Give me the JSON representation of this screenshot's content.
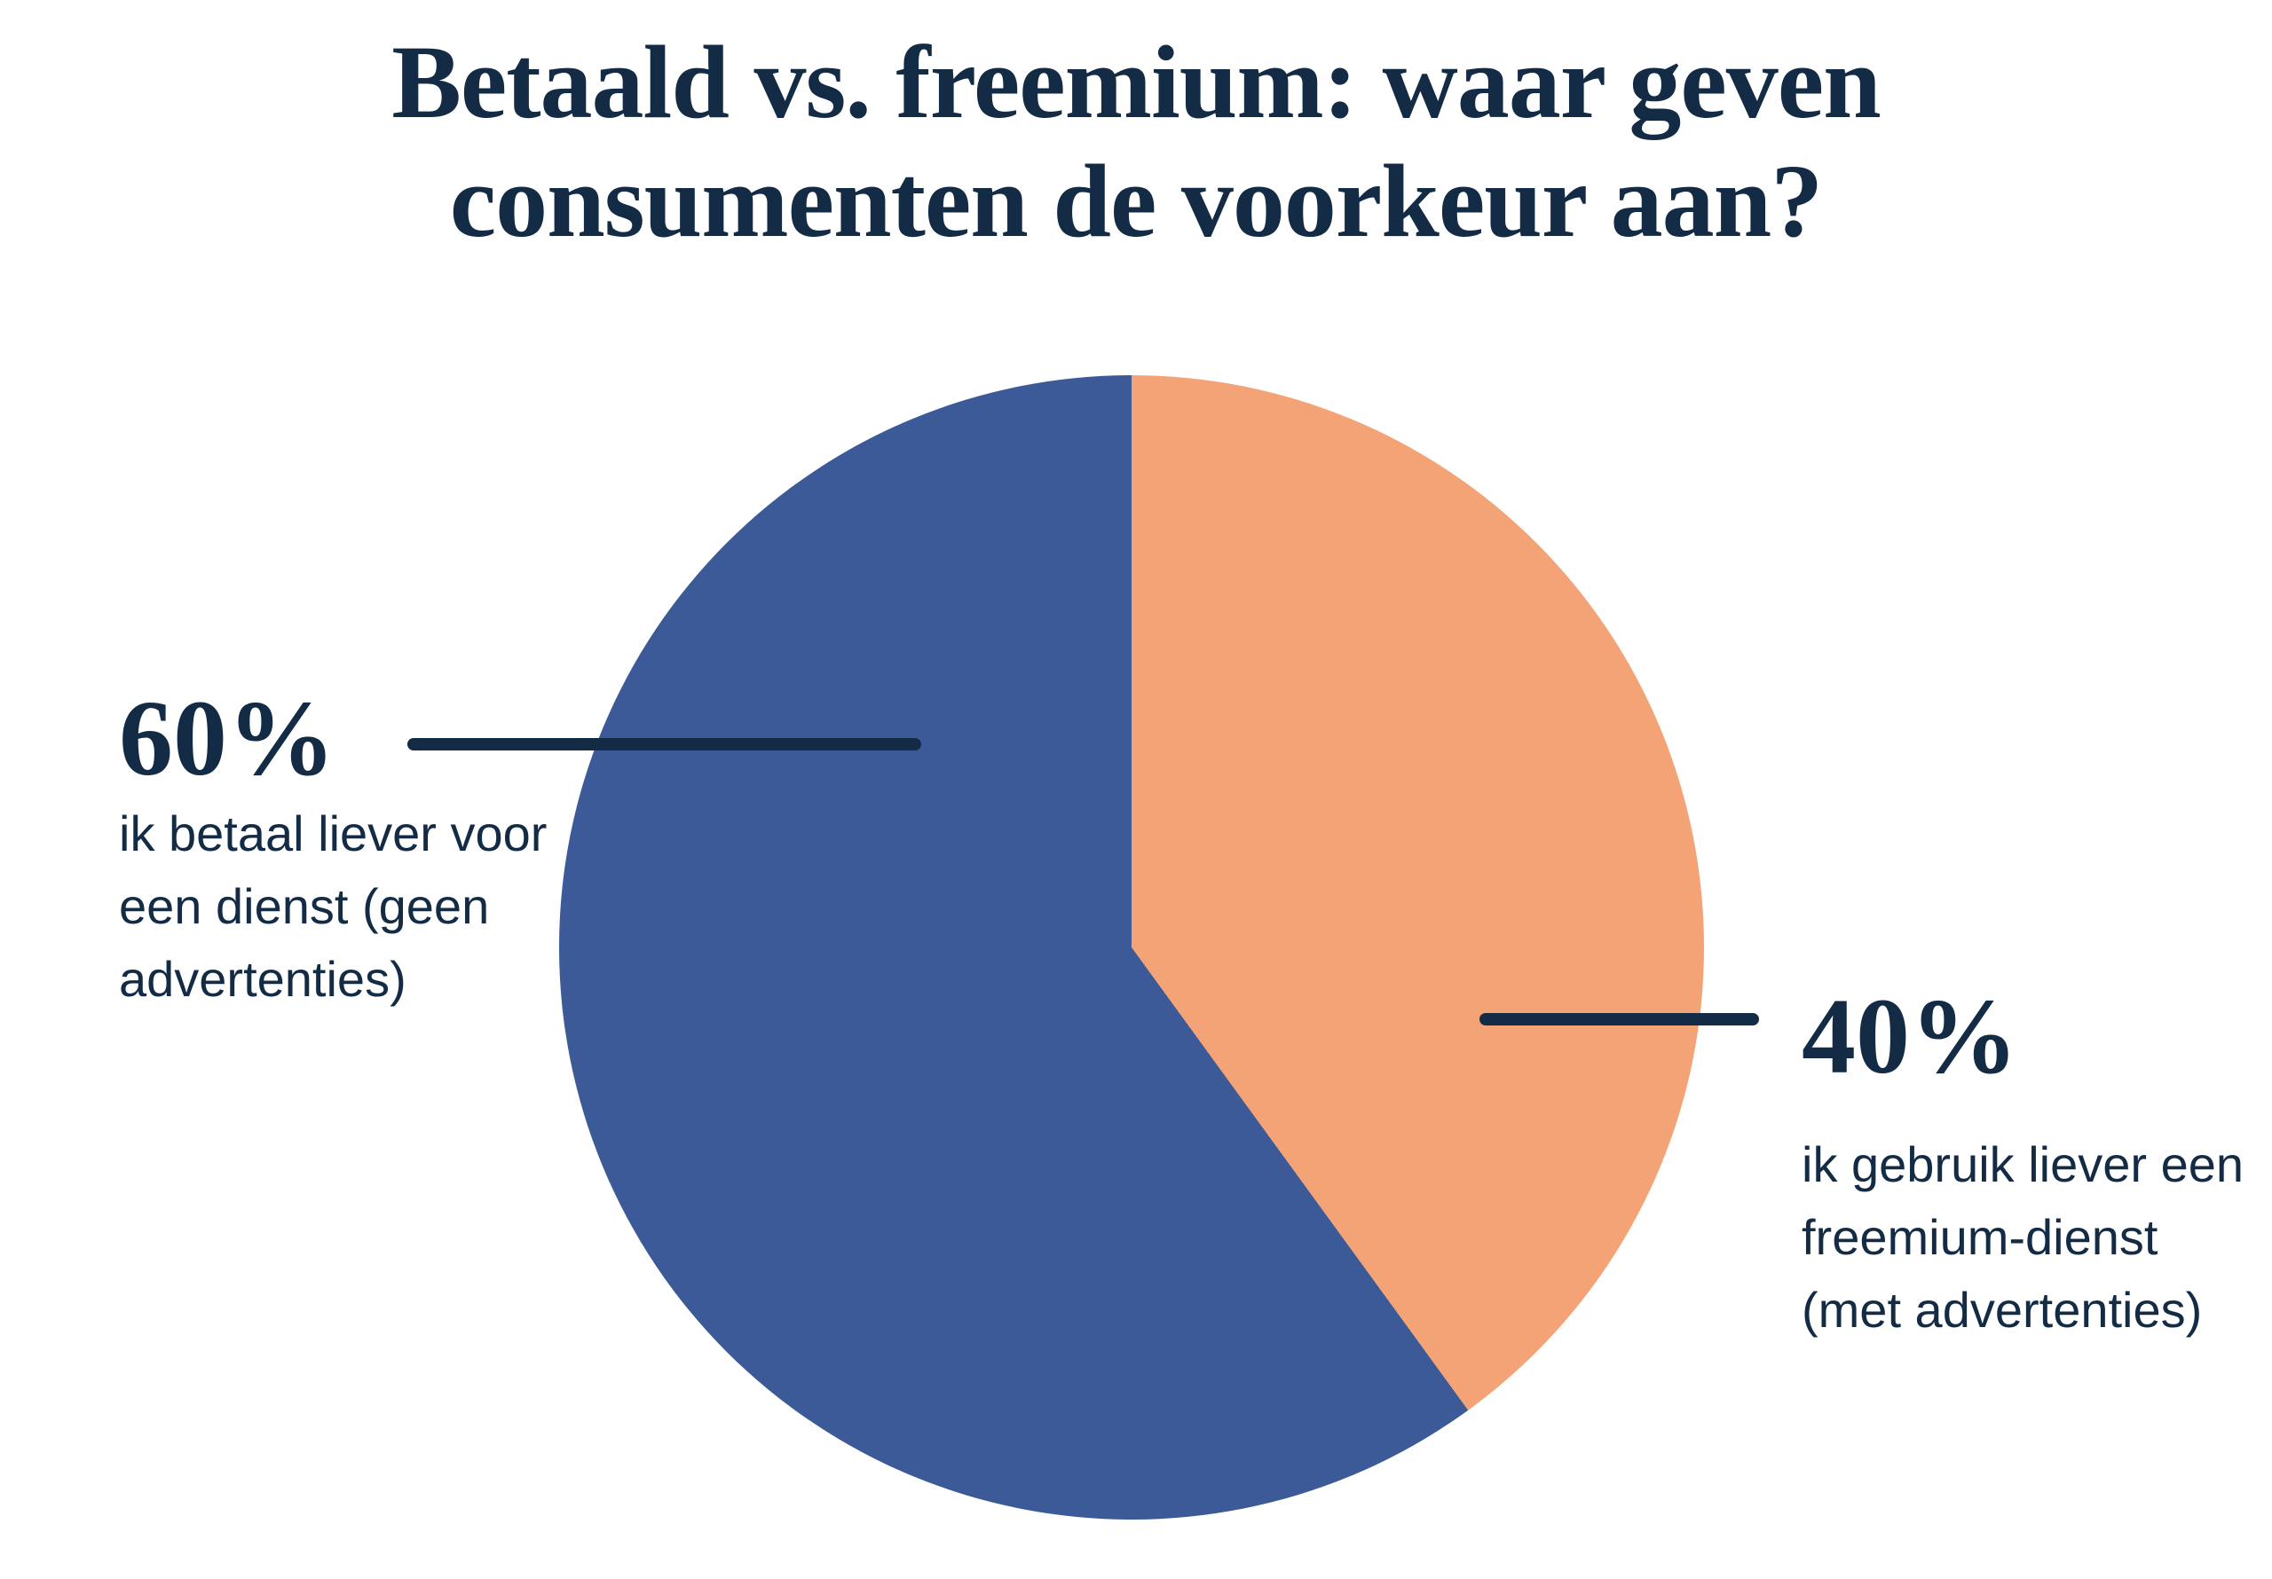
{
  "title": {
    "full": "Betaald vs. freemium: waar geven consumenten de voorkeur aan?",
    "lines": [
      "Betaald vs. freemium: waar geven",
      "consumenten de voorkeur aan?"
    ]
  },
  "chart_data": {
    "type": "pie",
    "title": "Betaald vs. freemium: waar geven consumenten de voorkeur aan?",
    "series": [
      {
        "name": "ik betaal liever voor een dienst (geen advertenties)",
        "value": 60,
        "unit": "%",
        "color": "#3B5A97"
      },
      {
        "name": "ik gebruik liever een freemium-dienst (met advertenties)",
        "value": 40,
        "unit": "%",
        "color": "#F4A376"
      }
    ],
    "start_angle_deg": 0,
    "direction": "clockwise",
    "legend_position": "callout-labels"
  },
  "callouts": {
    "left": {
      "pct": "60%",
      "lines": [
        "ik betaal liever voor",
        "een dienst (geen",
        "advertenties)"
      ]
    },
    "right": {
      "pct": "40%",
      "lines": [
        "ik gebruik liever een",
        "freemium-dienst",
        "(met advertenties)"
      ]
    }
  },
  "colors": {
    "text": "#132B45",
    "leader_line": "#132B45",
    "blue": "#3B5A97",
    "orange": "#F4A376",
    "background": "#FFFFFF"
  }
}
